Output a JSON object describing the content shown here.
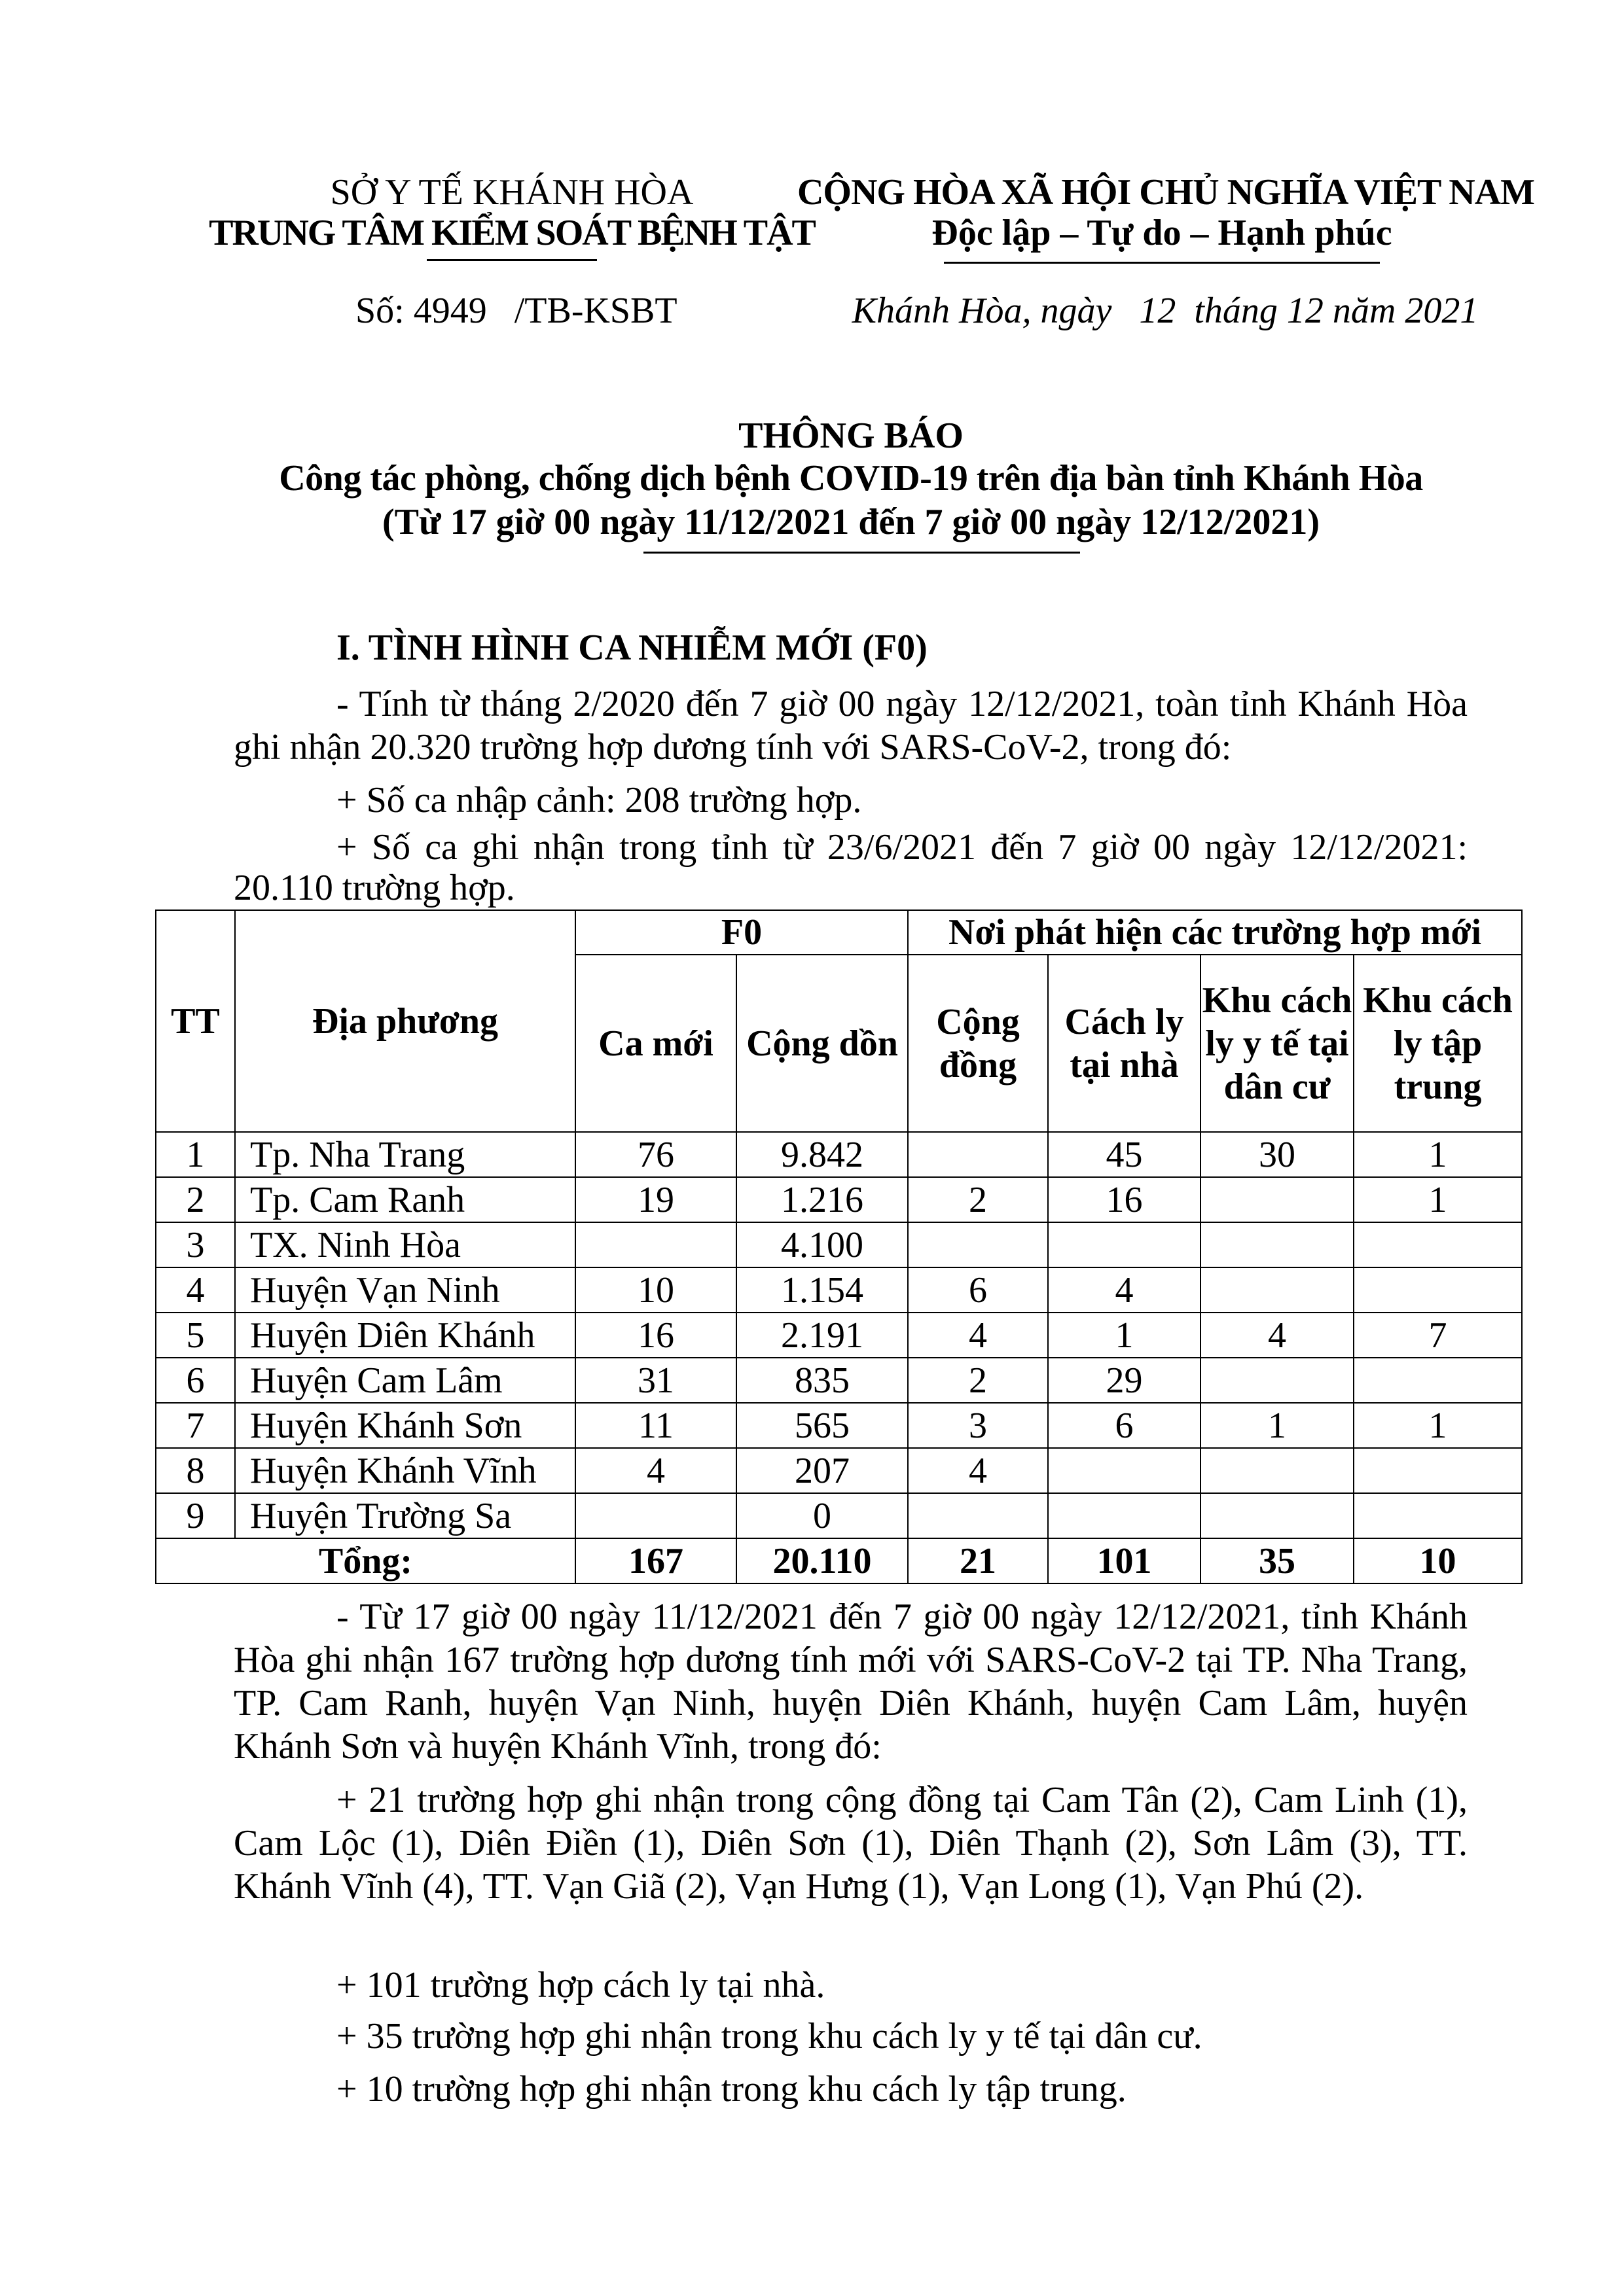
{
  "header": {
    "agency_parent": "SỞ Y TẾ KHÁNH HÒA",
    "agency": "TRUNG TÂM KIỂM SOÁT BỆNH TẬT",
    "nation": "CỘNG HÒA XÃ HỘI CHỦ NGHĨA VIỆT NAM",
    "motto": "Độc lập – Tự do – Hạnh phúc",
    "doc_number": "Số: 4949   /TB-KSBT",
    "place_date": "Khánh Hòa, ngày   12  tháng 12 năm 2021"
  },
  "title": {
    "main": "THÔNG BÁO",
    "subtitle": "Công tác phòng, chống dịch bệnh COVID-19 trên địa bàn tỉnh Khánh Hòa",
    "period": "(Từ 17 giờ 00 ngày 11/12/2021 đến 7 giờ 00 ngày 12/12/2021)"
  },
  "section1": {
    "heading": "I. TÌNH HÌNH CA NHIỄM MỚI (F0)",
    "p1": "- Tính từ tháng 2/2020 đến 7 giờ 00 ngày 12/12/2021, toàn tỉnh Khánh Hòa ghi nhận 20.320 trường hợp dương tính với SARS-CoV-2, trong đó:",
    "p2": "+ Số ca nhập cảnh: 208 trường hợp.",
    "p3": "+ Số ca ghi nhận trong tỉnh từ 23/6/2021 đến 7 giờ 00 ngày 12/12/2021: 20.110 trường hợp."
  },
  "table": {
    "headers": {
      "tt": "TT",
      "locality": "Địa phương",
      "f0": "F0",
      "where": "Nơi phát hiện các trường hợp mới",
      "new_cases": "Ca mới",
      "cumulative": "Cộng dồn",
      "community": "Cộng đồng",
      "home": "Cách ly tại nhà",
      "residential": "Khu cách ly y tế tại dân cư",
      "centralized": "Khu cách ly tập trung"
    },
    "rows": [
      [
        "1",
        "Tp. Nha Trang",
        "76",
        "9.842",
        "",
        "45",
        "30",
        "1"
      ],
      [
        "2",
        "Tp. Cam Ranh",
        "19",
        "1.216",
        "2",
        "16",
        "",
        "1"
      ],
      [
        "3",
        "TX. Ninh Hòa",
        "",
        "4.100",
        "",
        "",
        "",
        ""
      ],
      [
        "4",
        "Huyện Vạn Ninh",
        "10",
        "1.154",
        "6",
        "4",
        "",
        ""
      ],
      [
        "5",
        "Huyện Diên Khánh",
        "16",
        "2.191",
        "4",
        "1",
        "4",
        "7"
      ],
      [
        "6",
        "Huyện Cam Lâm",
        "31",
        "835",
        "2",
        "29",
        "",
        ""
      ],
      [
        "7",
        "Huyện Khánh Sơn",
        "11",
        "565",
        "3",
        "6",
        "1",
        "1"
      ],
      [
        "8",
        "Huyện Khánh Vĩnh",
        "4",
        "207",
        "4",
        "",
        "",
        ""
      ],
      [
        "9",
        "Huyện Trường Sa",
        "",
        "0",
        "",
        "",
        "",
        ""
      ]
    ],
    "total": [
      "Tổng:",
      "167",
      "20.110",
      "21",
      "101",
      "35",
      "10"
    ]
  },
  "section1b": {
    "p4": "- Từ 17 giờ 00 ngày 11/12/2021 đến 7 giờ 00 ngày 12/12/2021, tỉnh Khánh Hòa ghi nhận 167 trường hợp dương tính mới với SARS-CoV-2 tại TP. Nha Trang, TP. Cam Ranh, huyện Vạn Ninh, huyện Diên Khánh, huyện Cam Lâm, huyện Khánh Sơn và huyện Khánh Vĩnh, trong đó:",
    "p5": "+ 21 trường hợp ghi nhận trong cộng đồng tại Cam Tân (2), Cam Linh (1), Cam Lộc (1), Diên Điền (1), Diên Sơn (1), Diên Thạnh (2), Sơn Lâm (3), TT. Khánh Vĩnh (4), TT. Vạn Giã (2), Vạn Hưng (1), Vạn Long (1), Vạn Phú (2).",
    "p6": "+ 101 trường hợp cách ly tại nhà.",
    "p7": "+ 35 trường hợp ghi nhận trong khu cách ly y tế tại dân cư.",
    "p8": "+ 10 trường hợp ghi nhận trong khu cách ly tập trung."
  }
}
